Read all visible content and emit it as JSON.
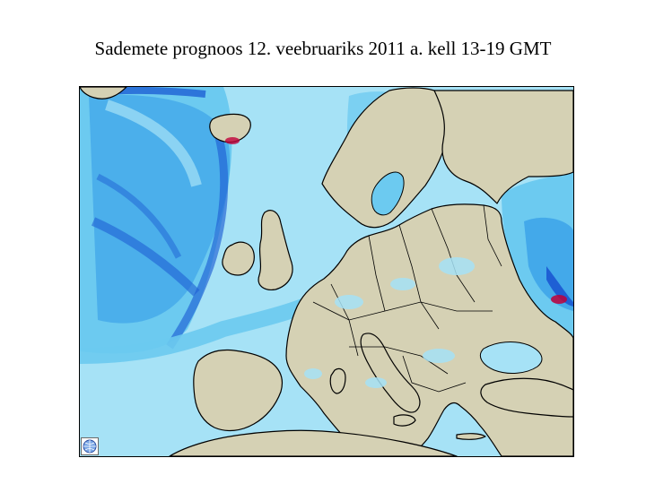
{
  "title": "Sademete prognoos 12. veebruariks 2011 a. kell 13-19 GMT",
  "map": {
    "region": "Europe",
    "legend_colors": {
      "ocean_light": "#a6e2f6",
      "precip_light": "#6ccaf0",
      "precip_medium": "#3aa0e8",
      "precip_heavy": "#1e5fd4",
      "precip_extreme": "#c0003a",
      "land": "#d5d1b4",
      "coast": "#000000"
    },
    "icons": [
      "globe-logo-icon"
    ]
  }
}
